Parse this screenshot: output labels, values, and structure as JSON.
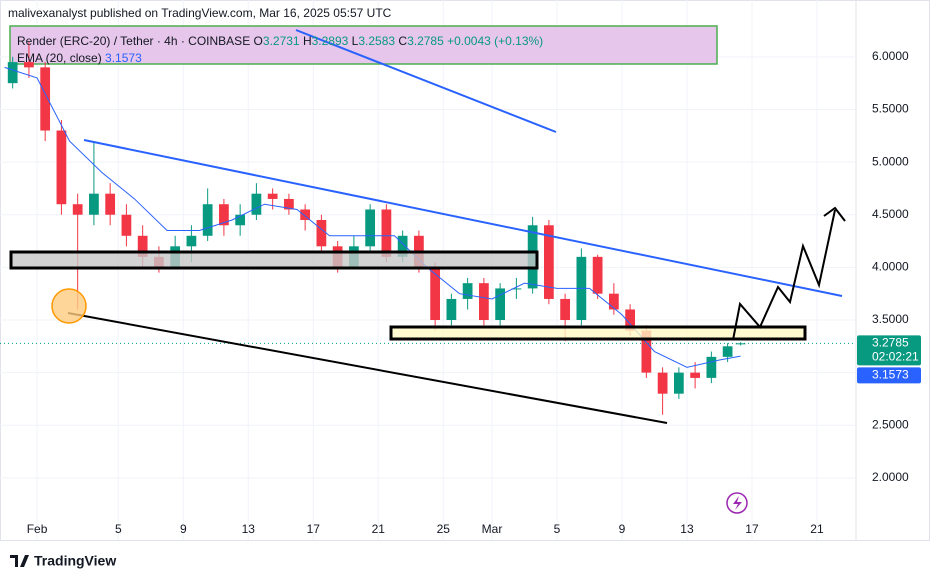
{
  "header": {
    "published": "malivexanalyst published on TradingView.com, Mar 16, 2025 05:57 UTC"
  },
  "footer": {
    "brand": "TradingView"
  },
  "chart_data": {
    "type": "candlestick",
    "symbol": "Render (ERC-20) / Tether · 4h · COINBASE",
    "ohlc_letters": [
      "O",
      "H",
      "L",
      "C"
    ],
    "change": "+0.0043 (+0.13%)",
    "countdown": "02:02:21",
    "up_color": "#089981",
    "down_color": "#f23645",
    "candles": [
      [
        -1.5,
        5.75,
        6.0,
        5.7,
        5.95
      ],
      [
        -0.5,
        5.95,
        6.15,
        5.8,
        5.9
      ],
      [
        0.5,
        5.9,
        5.95,
        5.2,
        5.3
      ],
      [
        1.5,
        5.3,
        5.4,
        4.5,
        4.6
      ],
      [
        2.5,
        4.6,
        4.7,
        3.6,
        4.5
      ],
      [
        3.5,
        4.5,
        5.2,
        4.4,
        4.7
      ],
      [
        4.5,
        4.7,
        4.8,
        4.4,
        4.5
      ],
      [
        5.5,
        4.5,
        4.6,
        4.2,
        4.3
      ],
      [
        6.5,
        4.3,
        4.4,
        4.0,
        4.1
      ],
      [
        7.5,
        4.1,
        4.2,
        3.95,
        4.0
      ],
      [
        8.5,
        4.0,
        4.3,
        3.98,
        4.2
      ],
      [
        9.5,
        4.2,
        4.4,
        4.05,
        4.3
      ],
      [
        10.5,
        4.3,
        4.75,
        4.25,
        4.6
      ],
      [
        11.5,
        4.6,
        4.65,
        4.3,
        4.4
      ],
      [
        12.5,
        4.4,
        4.6,
        4.3,
        4.5
      ],
      [
        13.5,
        4.5,
        4.8,
        4.45,
        4.7
      ],
      [
        14.5,
        4.7,
        4.75,
        4.55,
        4.65
      ],
      [
        15.5,
        4.65,
        4.7,
        4.5,
        4.55
      ],
      [
        16.5,
        4.55,
        4.6,
        4.35,
        4.45
      ],
      [
        17.5,
        4.45,
        4.5,
        4.15,
        4.2
      ],
      [
        18.5,
        4.2,
        4.25,
        3.95,
        4.0
      ],
      [
        19.5,
        4.0,
        4.3,
        3.98,
        4.2
      ],
      [
        20.5,
        4.2,
        4.6,
        4.15,
        4.55
      ],
      [
        21.5,
        4.55,
        4.6,
        4.05,
        4.1
      ],
      [
        22.5,
        4.1,
        4.35,
        4.05,
        4.3
      ],
      [
        23.5,
        4.3,
        4.35,
        3.95,
        4.0
      ],
      [
        24.5,
        4.0,
        4.05,
        3.4,
        3.5
      ],
      [
        25.5,
        3.5,
        3.75,
        3.45,
        3.7
      ],
      [
        26.5,
        3.7,
        3.9,
        3.6,
        3.85
      ],
      [
        27.5,
        3.85,
        3.9,
        3.45,
        3.5
      ],
      [
        28.5,
        3.5,
        3.85,
        3.45,
        3.8
      ],
      [
        29.5,
        3.8,
        3.9,
        3.7,
        3.8
      ],
      [
        30.5,
        3.8,
        4.48,
        3.75,
        4.4
      ],
      [
        31.5,
        4.4,
        4.45,
        3.65,
        3.7
      ],
      [
        32.5,
        3.7,
        3.75,
        3.3,
        3.5
      ],
      [
        33.5,
        3.5,
        4.18,
        3.45,
        4.1
      ],
      [
        34.5,
        4.1,
        4.12,
        3.7,
        3.75
      ],
      [
        35.5,
        3.75,
        3.85,
        3.55,
        3.6
      ],
      [
        36.5,
        3.6,
        3.65,
        3.35,
        3.4
      ],
      [
        37.5,
        3.4,
        3.45,
        2.95,
        3.0
      ],
      [
        38.5,
        3.0,
        3.05,
        2.6,
        2.8
      ],
      [
        39.5,
        2.8,
        3.05,
        2.75,
        3.0
      ],
      [
        40.5,
        3.0,
        3.1,
        2.85,
        2.95
      ],
      [
        41.5,
        2.95,
        3.2,
        2.9,
        3.15
      ],
      [
        42.5,
        3.15,
        3.28,
        3.1,
        3.25
      ],
      [
        43.3,
        3.2731,
        3.2893,
        3.2583,
        3.2785
      ]
    ],
    "ema": {
      "name": "EMA (20, close)",
      "color": "#2962ff",
      "x": [
        -2,
        0,
        2,
        4,
        6,
        8,
        10,
        12,
        14,
        16,
        18,
        20,
        22,
        24,
        26,
        28,
        30,
        32,
        34,
        36,
        38,
        40,
        42,
        43.3
      ],
      "values": [
        5.9,
        5.8,
        5.2,
        4.9,
        4.65,
        4.35,
        4.35,
        4.45,
        4.6,
        4.55,
        4.3,
        4.3,
        4.3,
        4.0,
        3.75,
        3.7,
        3.85,
        3.8,
        3.8,
        3.55,
        3.2,
        3.05,
        3.12,
        3.1573
      ]
    },
    "xlim": [
      -2.28,
      50.34
    ],
    "ylim": [
      1.41,
      6.54
    ],
    "xticks": [
      {
        "value": 0,
        "label": "Feb"
      },
      5,
      9,
      13,
      17,
      21,
      25,
      {
        "value": 28,
        "label": "Mar"
      },
      {
        "value": 32,
        "label": "5"
      },
      {
        "value": 36,
        "label": "9"
      },
      {
        "value": 40,
        "label": "13"
      },
      {
        "value": 44,
        "label": "17"
      },
      {
        "value": 48,
        "label": "21"
      }
    ],
    "yticks": [
      {
        "value": 2,
        "label": "2.0000"
      },
      {
        "value": 2.5,
        "label": "2.5000"
      },
      {
        "value": 3,
        "label": "3.0000"
      },
      {
        "value": 3.5,
        "label": "3.5000"
      },
      {
        "value": 4,
        "label": "4.0000"
      },
      {
        "value": 4.5,
        "label": "4.5000"
      },
      {
        "value": 5,
        "label": "5.0000"
      },
      {
        "value": 5.5,
        "label": "5.5000"
      },
      {
        "value": 6,
        "label": "6.0000"
      }
    ]
  }
}
